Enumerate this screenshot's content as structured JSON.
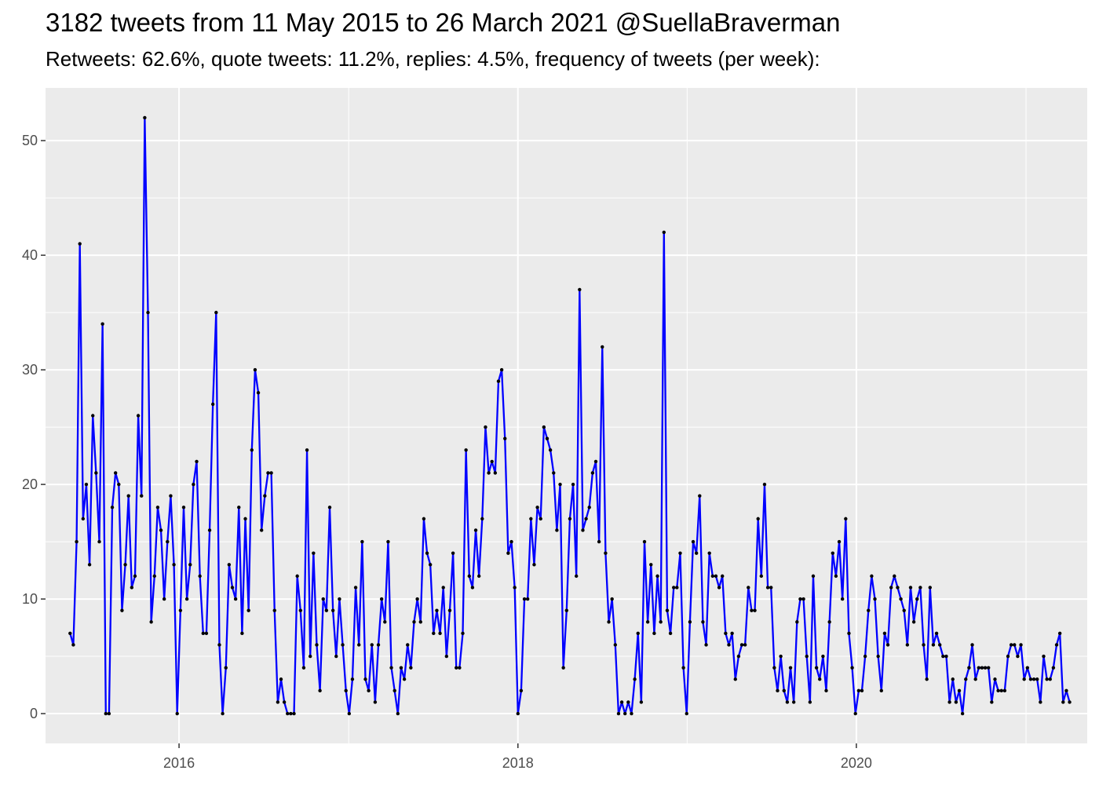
{
  "chart_data": {
    "type": "line",
    "title": "3182 tweets from 11 May 2015 to 26 March 2021 @SuellaBraverman",
    "subtitle": "Retweets: 62.6%, quote tweets: 11.2%, replies: 4.5%, frequency of tweets (per week):",
    "xlabel": "",
    "ylabel": "",
    "x_ticks": [
      "2016",
      "2018",
      "2020"
    ],
    "y_ticks": [
      0,
      10,
      20,
      30,
      40,
      50
    ],
    "ylim": [
      -2.6,
      54.6
    ],
    "xlim": [
      "2015-03-19",
      "2021-05-13"
    ],
    "grid": true,
    "legend": "none",
    "line_color": "#0000ff",
    "point_color": "#000000",
    "panel_color": "#ebebeb",
    "grid_color": "#ffffff",
    "x_start": "2015-05-11",
    "x_step_days": 7,
    "series": [
      {
        "values": [
          7,
          6,
          15,
          41,
          17,
          20,
          13,
          26,
          21,
          15,
          34,
          0,
          0,
          18,
          21,
          20,
          9,
          13,
          19,
          11,
          12,
          26,
          19,
          52,
          35,
          8,
          12,
          18,
          16,
          10,
          15,
          19,
          13,
          0,
          9,
          18,
          10,
          13,
          20,
          22,
          12,
          7,
          7,
          16,
          27,
          35,
          6,
          0,
          4,
          13,
          11,
          10,
          18,
          7,
          17,
          9,
          23,
          30,
          28,
          16,
          19,
          21,
          21,
          9,
          1,
          3,
          1,
          0,
          0,
          0,
          12,
          9,
          4,
          23,
          5,
          14,
          6,
          2,
          10,
          9,
          18,
          9,
          5,
          10,
          6,
          2,
          0,
          3,
          11,
          6,
          15,
          3,
          2,
          6,
          1,
          6,
          10,
          8,
          15,
          4,
          2,
          0,
          4,
          3,
          6,
          4,
          8,
          10,
          8,
          17,
          14,
          13,
          7,
          9,
          7,
          11,
          5,
          9,
          14,
          4,
          4,
          7,
          23,
          12,
          11,
          16,
          12,
          17,
          25,
          21,
          22,
          21,
          29,
          30,
          24,
          14,
          15,
          11,
          0,
          2,
          10,
          10,
          17,
          13,
          18,
          17,
          25,
          24,
          23,
          21,
          16,
          20,
          4,
          9,
          17,
          20,
          12,
          37,
          16,
          17,
          18,
          21,
          22,
          15,
          32,
          14,
          8,
          10,
          6,
          0,
          1,
          0,
          1,
          0,
          3,
          7,
          1,
          15,
          8,
          13,
          7,
          12,
          8,
          42,
          9,
          7,
          11,
          11,
          14,
          4,
          0,
          8,
          15,
          14,
          19,
          8,
          6,
          14,
          12,
          12,
          11,
          12,
          7,
          6,
          7,
          3,
          5,
          6,
          6,
          11,
          9,
          9,
          17,
          12,
          20,
          11,
          11,
          4,
          2,
          5,
          2,
          1,
          4,
          1,
          8,
          10,
          10,
          5,
          1,
          12,
          4,
          3,
          5,
          2,
          8,
          14,
          12,
          15,
          10,
          17,
          7,
          4,
          0,
          2,
          2,
          5,
          9,
          12,
          10,
          5,
          2,
          7,
          6,
          11,
          12,
          11,
          10,
          9,
          6,
          11,
          8,
          10,
          11,
          6,
          3,
          11,
          6,
          7,
          6,
          5,
          5,
          1,
          3,
          1,
          2,
          0,
          3,
          4,
          6,
          3,
          4,
          4,
          4,
          4,
          1,
          3,
          2,
          2,
          2,
          5,
          6,
          6,
          5,
          6,
          3,
          4,
          3,
          3,
          3,
          1,
          5,
          3,
          3,
          4,
          6,
          7,
          1,
          2,
          1
        ]
      }
    ]
  }
}
